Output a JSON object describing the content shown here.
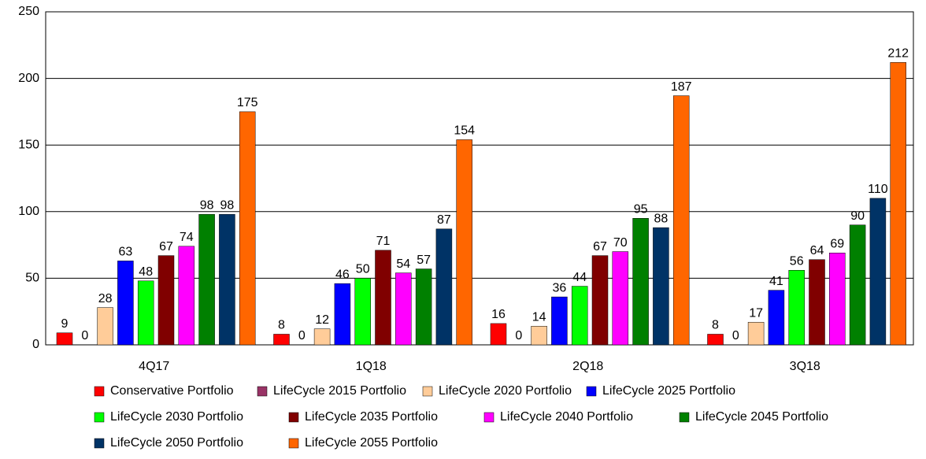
{
  "chart_data": {
    "type": "bar",
    "categories": [
      "4Q17",
      "1Q18",
      "2Q18",
      "3Q18"
    ],
    "series": [
      {
        "name": "Conservative Portfolio",
        "color": "#ff0000",
        "values": [
          9,
          8,
          16,
          8
        ]
      },
      {
        "name": "LifeCycle 2015 Portfolio",
        "color": "#993366",
        "values": [
          0,
          0,
          0,
          0
        ]
      },
      {
        "name": "LifeCycle 2020 Portfolio",
        "color": "#ffcc99",
        "values": [
          28,
          12,
          14,
          17
        ]
      },
      {
        "name": "LifeCycle 2025 Portfolio",
        "color": "#0000ff",
        "values": [
          63,
          46,
          36,
          41
        ]
      },
      {
        "name": "LifeCycle 2030 Portfolio",
        "color": "#00ff00",
        "values": [
          48,
          50,
          44,
          56
        ]
      },
      {
        "name": "LifeCycle 2035 Portfolio",
        "color": "#800000",
        "values": [
          67,
          71,
          67,
          64
        ]
      },
      {
        "name": "LifeCycle 2040 Portfolio",
        "color": "#ff00ff",
        "values": [
          74,
          54,
          70,
          69
        ]
      },
      {
        "name": "LifeCycle 2045 Portfolio",
        "color": "#008000",
        "values": [
          98,
          57,
          95,
          90
        ]
      },
      {
        "name": "LifeCycle 2050 Portfolio",
        "color": "#003366",
        "values": [
          98,
          87,
          88,
          110
        ]
      },
      {
        "name": "LifeCycle 2055 Portfolio",
        "color": "#ff6600",
        "values": [
          175,
          154,
          187,
          212
        ]
      }
    ],
    "ylim": [
      0,
      250
    ],
    "yticks": [
      0,
      50,
      100,
      150,
      200,
      250
    ],
    "grid": true,
    "legend": "bottom"
  }
}
